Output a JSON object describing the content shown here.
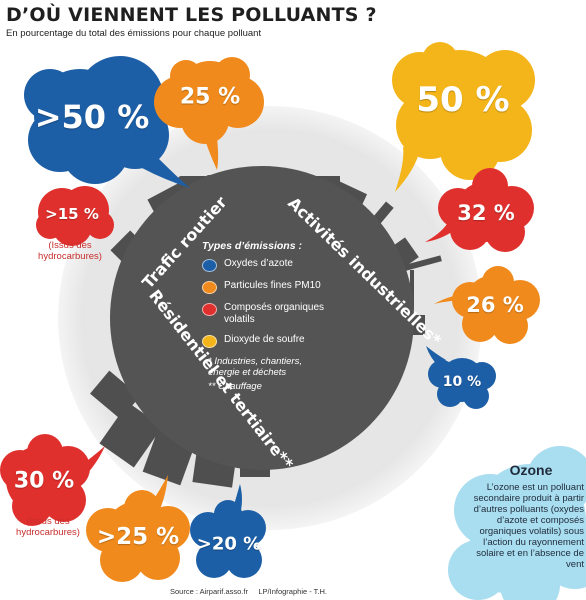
{
  "title": "D’OÙ VIENNENT LES POLLUANTS ?",
  "subtitle": "En pourcentage du total des émissions pour chaque polluant",
  "colors": {
    "blue": "#1d5fa6",
    "orange": "#f08a1c",
    "red": "#e0302d",
    "yellow": "#f4b51a",
    "planet": "#545454",
    "halo": "#d2d2d2",
    "ozone_bg": "#a9ddf0"
  },
  "sectors": {
    "traffic": "Trafic routier",
    "industry": "Activités industrielles*",
    "residential": "Résidentiel et tertiaire**"
  },
  "clouds": [
    {
      "id": "traffic-nox",
      "value": ">50 %",
      "color": "blue"
    },
    {
      "id": "traffic-pm10",
      "value": "25 %",
      "color": "orange"
    },
    {
      "id": "traffic-cov",
      "value": ">15 %",
      "color": "red"
    },
    {
      "id": "industry-so2",
      "value": "50 %",
      "color": "yellow"
    },
    {
      "id": "industry-cov",
      "value": "32 %",
      "color": "red"
    },
    {
      "id": "industry-pm10",
      "value": "26 %",
      "color": "orange"
    },
    {
      "id": "industry-nox",
      "value": "10 %",
      "color": "blue"
    },
    {
      "id": "residential-cov",
      "value": "30 %",
      "color": "red"
    },
    {
      "id": "residential-pm10",
      "value": ">25 %",
      "color": "orange"
    },
    {
      "id": "residential-nox",
      "value": ">20 %",
      "color": "blue"
    }
  ],
  "notes": {
    "traffic": "(Issus des\nhydrocarbures)",
    "residential": "(Issus des\nhydrocarbures)"
  },
  "legend": {
    "title": "Types d’émissions :",
    "items": [
      {
        "label": "Oxydes d’azote",
        "color": "blue"
      },
      {
        "label": "Particules fines PM10",
        "color": "orange"
      },
      {
        "label": "Composés organiques volatils",
        "color": "red"
      },
      {
        "label": "Dioxyde de soufre",
        "color": "yellow"
      }
    ],
    "footnote1": "* Industries, chantiers, énergie et déchets",
    "footnote2": "** Chauffage"
  },
  "ozone": {
    "title": "Ozone",
    "text": "L’ozone est un polluant secondaire produit à partir d’autres polluants (oxydes d’azote et composés organiques volatils) sous l’action du rayonnement solaire et en l’absence de vent"
  },
  "source": "Source : Airparif.asso.fr     LP/Infographie - T.H."
}
